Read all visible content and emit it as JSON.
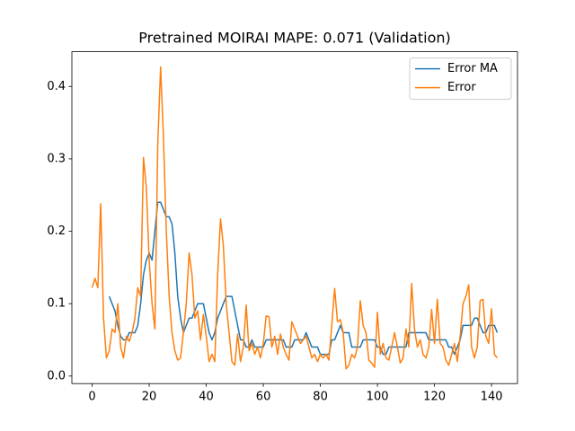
{
  "chart_data": {
    "type": "line",
    "title": "Pretrained MOIRAI MAPE: 0.071 (Validation)",
    "x": [
      0,
      1,
      2,
      3,
      4,
      5,
      6,
      7,
      8,
      9,
      10,
      11,
      12,
      13,
      14,
      15,
      16,
      17,
      18,
      19,
      20,
      21,
      22,
      23,
      24,
      25,
      26,
      27,
      28,
      29,
      30,
      31,
      32,
      33,
      34,
      35,
      36,
      37,
      38,
      39,
      40,
      41,
      42,
      43,
      44,
      45,
      46,
      47,
      48,
      49,
      50,
      51,
      52,
      53,
      54,
      55,
      56,
      57,
      58,
      59,
      60,
      61,
      62,
      63,
      64,
      65,
      66,
      67,
      68,
      69,
      70,
      71,
      72,
      73,
      74,
      75,
      76,
      77,
      78,
      79,
      80,
      81,
      82,
      83,
      84,
      85,
      86,
      87,
      88,
      89,
      90,
      91,
      92,
      93,
      94,
      95,
      96,
      97,
      98,
      99,
      100,
      101,
      102,
      103,
      104,
      105,
      106,
      107,
      108,
      109,
      110,
      111,
      112,
      113,
      114,
      115,
      116,
      117,
      118,
      119,
      120,
      121,
      122,
      123,
      124,
      125,
      126,
      127,
      128,
      129,
      130,
      131,
      132,
      133,
      134,
      135,
      136,
      137,
      138,
      139,
      140,
      141,
      142
    ],
    "series": [
      {
        "name": "Error MA",
        "color": "#1f77b4",
        "values": [
          null,
          null,
          null,
          null,
          null,
          null,
          0.11,
          0.1,
          0.09,
          0.07,
          0.055,
          0.05,
          0.05,
          0.06,
          0.06,
          0.06,
          0.07,
          0.1,
          0.14,
          0.16,
          0.17,
          0.16,
          0.2,
          0.24,
          0.24,
          0.23,
          0.22,
          0.22,
          0.21,
          0.17,
          0.11,
          0.08,
          0.06,
          0.07,
          0.08,
          0.08,
          0.09,
          0.1,
          0.1,
          0.1,
          0.08,
          0.06,
          0.05,
          0.06,
          0.08,
          0.09,
          0.1,
          0.11,
          0.11,
          0.11,
          0.09,
          0.07,
          0.05,
          0.05,
          0.04,
          0.04,
          0.05,
          0.04,
          0.04,
          0.04,
          0.04,
          0.05,
          0.05,
          0.05,
          0.05,
          0.05,
          0.05,
          0.05,
          0.04,
          0.04,
          0.04,
          0.05,
          0.05,
          0.05,
          0.05,
          0.06,
          0.05,
          0.04,
          0.04,
          0.04,
          0.03,
          0.03,
          0.03,
          0.03,
          0.05,
          0.05,
          0.06,
          0.07,
          0.06,
          0.06,
          0.06,
          0.04,
          0.04,
          0.04,
          0.04,
          0.05,
          0.05,
          0.05,
          0.05,
          0.05,
          0.04,
          0.04,
          0.03,
          0.03,
          0.04,
          0.04,
          0.04,
          0.04,
          0.04,
          0.04,
          0.04,
          0.06,
          0.06,
          0.06,
          0.06,
          0.06,
          0.06,
          0.06,
          0.05,
          0.05,
          0.05,
          0.05,
          0.05,
          0.05,
          0.05,
          0.04,
          0.04,
          0.03,
          0.04,
          0.05,
          0.07,
          0.07,
          0.07,
          0.07,
          0.08,
          0.08,
          0.07,
          0.06,
          0.06,
          0.07,
          0.07,
          0.07,
          0.06
        ]
      },
      {
        "name": "Error",
        "color": "#ff7f0e",
        "values": [
          0.122,
          0.135,
          0.122,
          0.238,
          0.08,
          0.025,
          0.035,
          0.065,
          0.06,
          0.1,
          0.04,
          0.025,
          0.055,
          0.048,
          0.06,
          0.08,
          0.122,
          0.11,
          0.302,
          0.26,
          0.16,
          0.1,
          0.065,
          0.32,
          0.427,
          0.33,
          0.2,
          0.11,
          0.06,
          0.035,
          0.022,
          0.025,
          0.06,
          0.1,
          0.17,
          0.14,
          0.08,
          0.09,
          0.05,
          0.085,
          0.055,
          0.02,
          0.03,
          0.02,
          0.14,
          0.217,
          0.18,
          0.1,
          0.06,
          0.02,
          0.015,
          0.058,
          0.02,
          0.04,
          0.098,
          0.035,
          0.045,
          0.03,
          0.04,
          0.025,
          0.045,
          0.083,
          0.082,
          0.04,
          0.055,
          0.03,
          0.058,
          0.04,
          0.03,
          0.022,
          0.075,
          0.065,
          0.055,
          0.045,
          0.05,
          0.055,
          0.04,
          0.025,
          0.03,
          0.02,
          0.03,
          0.025,
          0.03,
          0.022,
          0.07,
          0.121,
          0.075,
          0.078,
          0.06,
          0.01,
          0.015,
          0.03,
          0.025,
          0.04,
          0.104,
          0.07,
          0.06,
          0.022,
          0.018,
          0.012,
          0.088,
          0.03,
          0.045,
          0.025,
          0.022,
          0.04,
          0.06,
          0.04,
          0.018,
          0.025,
          0.065,
          0.04,
          0.128,
          0.065,
          0.04,
          0.05,
          0.03,
          0.025,
          0.04,
          0.092,
          0.045,
          0.106,
          0.045,
          0.04,
          0.022,
          0.015,
          0.03,
          0.045,
          0.02,
          0.055,
          0.1,
          0.11,
          0.126,
          0.04,
          0.025,
          0.04,
          0.104,
          0.106,
          0.055,
          0.045,
          0.093,
          0.03,
          0.025
        ]
      }
    ],
    "xlim": [
      -7.1,
      149.1
    ],
    "xticks": [
      0,
      20,
      40,
      60,
      80,
      100,
      120,
      140
    ],
    "ylim": [
      -0.0104,
      0.448
    ],
    "yticks": [
      {
        "value": 0,
        "label": "0.0"
      },
      0.1,
      0.2,
      0.3,
      0.4
    ],
    "legend": "upper right",
    "grid": false
  }
}
